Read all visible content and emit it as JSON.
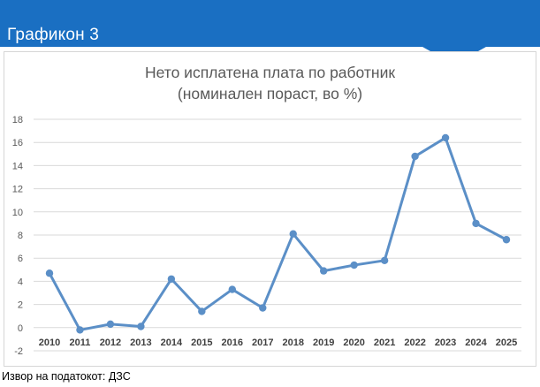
{
  "header": {
    "title": "Графикон 3"
  },
  "colors": {
    "header_bg": "#1a6fc2",
    "series": "#5b8fc7",
    "grid": "#d9d9d9"
  },
  "chart_data": {
    "type": "line",
    "title": "Нето исплатена плата по работник",
    "subtitle": "(номинален пораст, во %)",
    "xlabel": "",
    "ylabel": "",
    "categories": [
      "2010",
      "2011",
      "2012",
      "2013",
      "2014",
      "2015",
      "2016",
      "2017",
      "2018",
      "2019",
      "2020",
      "2021",
      "2022",
      "2023",
      "2024",
      "2025"
    ],
    "values": [
      4.7,
      -0.2,
      0.3,
      0.1,
      4.2,
      1.4,
      3.3,
      1.7,
      8.1,
      4.9,
      5.4,
      5.8,
      14.8,
      16.4,
      9.0,
      7.6
    ],
    "ylim": [
      -2,
      18
    ],
    "yticks": [
      "-2",
      "0",
      "2",
      "4",
      "6",
      "8",
      "10",
      "12",
      "14",
      "16",
      "18"
    ],
    "grid": true,
    "legend": "none"
  },
  "footer": {
    "source": "Извор на податокот: ДЗС"
  }
}
